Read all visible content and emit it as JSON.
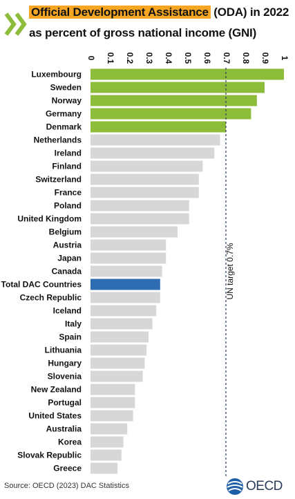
{
  "header": {
    "title_highlight": "Official Development Assistance",
    "title_rest": " (ODA) in 2022",
    "title_line2": "as percent of gross national income (GNI)"
  },
  "footer": {
    "source": "Source: OECD (2023) DAC Statistics",
    "logo_text": "OECD"
  },
  "colors": {
    "highlight_bar": "#8dbb3a",
    "total_bar": "#2e6db4",
    "default_bar": "#d7d7d7",
    "title_highlight": "#f6a623",
    "target_line": "#2a3a5a"
  },
  "chart_data": {
    "type": "bar",
    "orientation": "horizontal",
    "xlim": [
      0,
      1
    ],
    "x_ticks": [
      "0",
      "0.1",
      "0.2",
      "0.3",
      "0.4",
      "0.5",
      "0.6",
      "0.7",
      "0.8",
      "0.9",
      "1"
    ],
    "categories": [
      "Luxembourg",
      "Sweden",
      "Norway",
      "Germany",
      "Denmark",
      "Netherlands",
      "Ireland",
      "Finland",
      "Switzerland",
      "France",
      "Poland",
      "United Kingdom",
      "Belgium",
      "Austria",
      "Japan",
      "Canada",
      "Total DAC Countries",
      "Czech Republic",
      "Iceland",
      "Italy",
      "Spain",
      "Lithuania",
      "Hungary",
      "Slovenia",
      "New Zealand",
      "Portugal",
      "United States",
      "Australia",
      "Korea",
      "Slovak Republic",
      "Greece"
    ],
    "values": [
      1.0,
      0.9,
      0.86,
      0.83,
      0.7,
      0.67,
      0.64,
      0.58,
      0.56,
      0.56,
      0.51,
      0.51,
      0.45,
      0.39,
      0.39,
      0.37,
      0.36,
      0.36,
      0.34,
      0.32,
      0.3,
      0.29,
      0.28,
      0.27,
      0.23,
      0.23,
      0.22,
      0.19,
      0.17,
      0.16,
      0.14
    ],
    "bar_group": [
      "above",
      "above",
      "above",
      "above",
      "above",
      "below",
      "below",
      "below",
      "below",
      "below",
      "below",
      "below",
      "below",
      "below",
      "below",
      "below",
      "total",
      "below",
      "below",
      "below",
      "below",
      "below",
      "below",
      "below",
      "below",
      "below",
      "below",
      "below",
      "below",
      "below",
      "below"
    ],
    "reference_line": {
      "value": 0.7,
      "label": "UN target 0.7%"
    }
  }
}
